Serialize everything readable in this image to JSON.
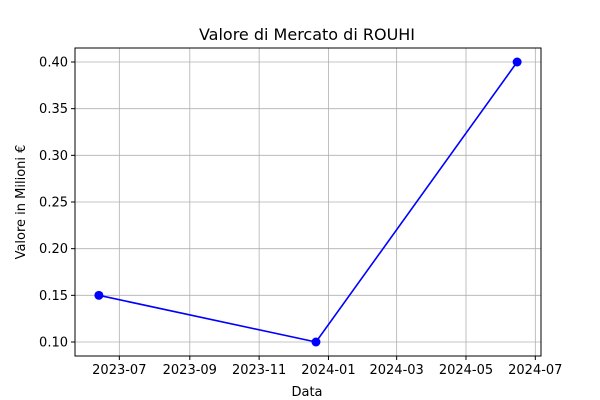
{
  "chart_data": {
    "type": "line",
    "title": "Valore di Mercato di ROUHI",
    "xlabel": "Data",
    "ylabel": "Valore in Milioni €",
    "x": [
      "2023-06-13",
      "2023-12-21",
      "2024-06-15"
    ],
    "series": [
      {
        "values": [
          0.15,
          0.1,
          0.4
        ],
        "color": "#0000ff",
        "marker": "circle"
      }
    ],
    "xlim": [
      "2023-05-23",
      "2024-07-06"
    ],
    "ylim": [
      0.085,
      0.415
    ],
    "x_ticks": [
      "2023-07",
      "2023-09",
      "2023-11",
      "2024-01",
      "2024-03",
      "2024-05",
      "2024-07"
    ],
    "y_ticks": [
      "0.10",
      "0.15",
      "0.20",
      "0.25",
      "0.30",
      "0.35",
      "0.40"
    ],
    "grid": true,
    "colors": {
      "line": "#0000ff",
      "grid": "#b0b0b0",
      "axes": "#000000"
    }
  }
}
